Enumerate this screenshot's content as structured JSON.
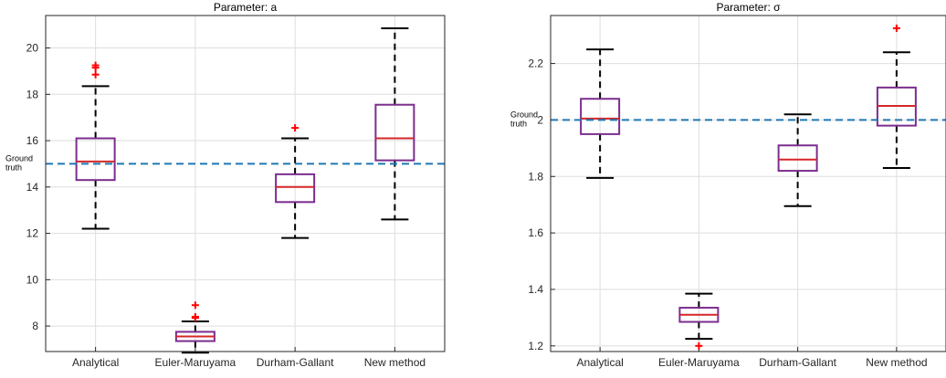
{
  "chart_data": [
    {
      "type": "box",
      "title": "Parameter: a",
      "categories": [
        "Analytical",
        "Euler-Maruyama",
        "Durham-Gallant",
        "New method"
      ],
      "ylim": [
        6.9,
        21.4
      ],
      "yticks": [
        8,
        10,
        12,
        14,
        16,
        18,
        20
      ],
      "grid": true,
      "reference_line": {
        "value": 15.0,
        "label_line1": "Ground",
        "label_line2": "truth",
        "color": "#1f77b4"
      },
      "boxes": [
        {
          "whisker_low": 12.2,
          "q1": 14.3,
          "median": 15.1,
          "q3": 16.1,
          "whisker_high": 18.35,
          "outliers": [
            18.85,
            19.15,
            19.25
          ]
        },
        {
          "whisker_low": 6.85,
          "q1": 7.35,
          "median": 7.55,
          "q3": 7.75,
          "whisker_high": 8.2,
          "outliers": [
            8.35,
            8.4,
            8.9
          ]
        },
        {
          "whisker_low": 11.8,
          "q1": 13.35,
          "median": 14.0,
          "q3": 14.55,
          "whisker_high": 16.1,
          "outliers": [
            16.55
          ]
        },
        {
          "whisker_low": 12.6,
          "q1": 15.15,
          "median": 16.1,
          "q3": 17.55,
          "whisker_high": 20.85,
          "outliers": []
        }
      ],
      "colors": {
        "box": "#7b2d8e",
        "median": "#d62728",
        "whisker": "#000000",
        "outlier": "#ff0000",
        "grid": "#dedede"
      }
    },
    {
      "type": "box",
      "title": "Parameter: σ",
      "categories": [
        "Analytical",
        "Euler-Maruyama",
        "Durham-Gallant",
        "New method"
      ],
      "ylim": [
        1.18,
        2.37
      ],
      "yticks": [
        1.2,
        1.4,
        1.6,
        1.8,
        2,
        2.2
      ],
      "grid": true,
      "reference_line": {
        "value": 2.0,
        "label_line1": "Ground",
        "label_line2": "truth",
        "color": "#1f77b4"
      },
      "boxes": [
        {
          "whisker_low": 1.795,
          "q1": 1.95,
          "median": 2.005,
          "q3": 2.075,
          "whisker_high": 2.25,
          "outliers": []
        },
        {
          "whisker_low": 1.225,
          "q1": 1.285,
          "median": 1.31,
          "q3": 1.335,
          "whisker_high": 1.385,
          "outliers": [
            1.2
          ]
        },
        {
          "whisker_low": 1.695,
          "q1": 1.82,
          "median": 1.86,
          "q3": 1.91,
          "whisker_high": 2.02,
          "outliers": []
        },
        {
          "whisker_low": 1.83,
          "q1": 1.98,
          "median": 2.05,
          "q3": 2.115,
          "whisker_high": 2.24,
          "outliers": [
            2.325
          ]
        }
      ],
      "colors": {
        "box": "#7b2d8e",
        "median": "#d62728",
        "whisker": "#000000",
        "outlier": "#ff0000",
        "grid": "#dedede"
      }
    }
  ]
}
